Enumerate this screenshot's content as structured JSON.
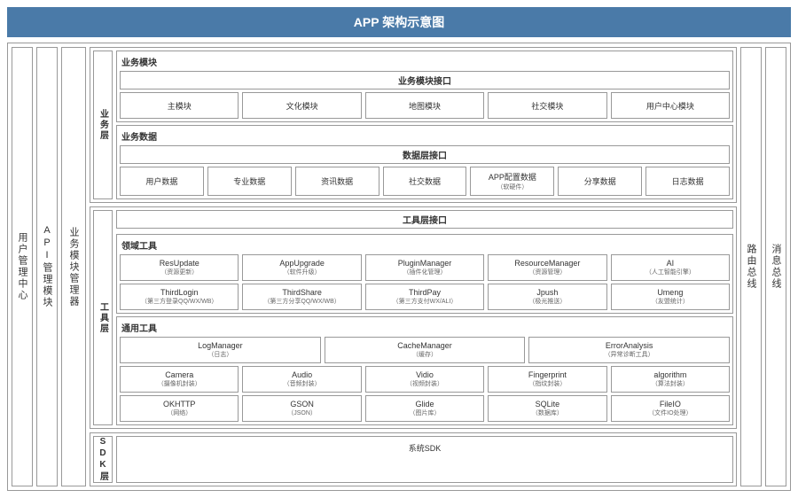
{
  "title": "APP 架构示意图",
  "colors": {
    "title_bg": "#4a7aa8",
    "title_fg": "#ffffff",
    "border": "#999999",
    "bg": "#ffffff",
    "text": "#333333",
    "subtext": "#666666"
  },
  "leftCols": [
    "用户管理中心",
    "API管理模块",
    "业务模块管理器"
  ],
  "rightCols": [
    "路由总线",
    "消息总线"
  ],
  "bizLayer": {
    "label": "业务层",
    "modules": {
      "title": "业务模块",
      "iface": "业务模块接口",
      "items": [
        "主模块",
        "文化模块",
        "地图模块",
        "社交模块",
        "用户中心模块"
      ]
    },
    "data": {
      "title": "业务数据",
      "iface": "数据层接口",
      "items": [
        {
          "t": "用户数据"
        },
        {
          "t": "专业数据"
        },
        {
          "t": "资讯数据"
        },
        {
          "t": "社交数据"
        },
        {
          "t": "APP配置数据",
          "s": "（软硬件）"
        },
        {
          "t": "分享数据"
        },
        {
          "t": "日志数据"
        }
      ]
    }
  },
  "toolLayer": {
    "label": "工具层",
    "iface": "工具层接口",
    "domain": {
      "title": "领域工具",
      "rows": [
        [
          {
            "t": "ResUpdate",
            "s": "（资源更新）"
          },
          {
            "t": "AppUpgrade",
            "s": "（软件升级）"
          },
          {
            "t": "PluginManager",
            "s": "（插件化管理）"
          },
          {
            "t": "ResourceManager",
            "s": "（资源管理）"
          },
          {
            "t": "AI",
            "s": "（人工智能引擎）"
          }
        ],
        [
          {
            "t": "ThirdLogin",
            "s": "（第三方登录QQ/WX/WB）"
          },
          {
            "t": "ThirdShare",
            "s": "（第三方分享QQ/WX/WB）"
          },
          {
            "t": "ThirdPay",
            "s": "（第三方支付WX/ALI）"
          },
          {
            "t": "Jpush",
            "s": "（极光推送）"
          },
          {
            "t": "Umeng",
            "s": "（友盟统计）"
          }
        ]
      ]
    },
    "general": {
      "title": "通用工具",
      "rows": [
        [
          {
            "t": "LogManager",
            "s": "（日志）"
          },
          {
            "t": "CacheManager",
            "s": "（缓存）"
          },
          {
            "t": "ErrorAnalysis",
            "s": "（异常诊断工具）"
          }
        ],
        [
          {
            "t": "Camera",
            "s": "（摄像机封装）"
          },
          {
            "t": "Audio",
            "s": "（音频封装）"
          },
          {
            "t": "Vidio",
            "s": "（视频封装）"
          },
          {
            "t": "Fingerprint",
            "s": "（指纹封装）"
          },
          {
            "t": "algorithm",
            "s": "（算法封装）"
          }
        ],
        [
          {
            "t": "OKHTTP",
            "s": "（网络）"
          },
          {
            "t": "GSON",
            "s": "（JSON）"
          },
          {
            "t": "Glide",
            "s": "（图片库）"
          },
          {
            "t": "SQLite",
            "s": "（数据库）"
          },
          {
            "t": "FileIO",
            "s": "（文件IO处理）"
          }
        ]
      ]
    }
  },
  "sdkLayer": {
    "label": "SDK层",
    "body": "系统SDK"
  }
}
